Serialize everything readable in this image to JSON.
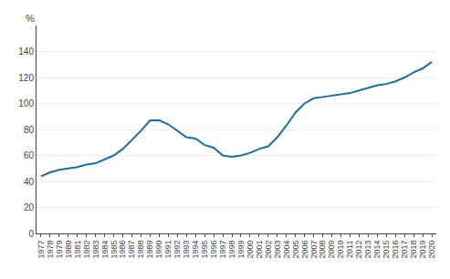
{
  "chart_data": {
    "type": "line",
    "x": [
      1977,
      1978,
      1979,
      1980,
      1981,
      1982,
      1983,
      1984,
      1985,
      1986,
      1987,
      1988,
      1989,
      1990,
      1991,
      1992,
      1993,
      1994,
      1995,
      1996,
      1997,
      1998,
      1999,
      2000,
      2001,
      2002,
      2003,
      2004,
      2005,
      2006,
      2007,
      2008,
      2009,
      2010,
      2011,
      2012,
      2013,
      2014,
      2015,
      2016,
      2017,
      2018,
      2019,
      2020
    ],
    "values": [
      44,
      47,
      49,
      50,
      51,
      53,
      54,
      57,
      60,
      65,
      72,
      79,
      87,
      87,
      84,
      79,
      74,
      73,
      68,
      66,
      60,
      59,
      60,
      62,
      65,
      67,
      74,
      83,
      93,
      100,
      104,
      105,
      106,
      107,
      108,
      110,
      112,
      114,
      115,
      117,
      120,
      124,
      127,
      132
    ],
    "color": "#1a6fa0",
    "xlim": [
      1976.5,
      2020.5
    ],
    "xticks": [
      1977,
      1978,
      1979,
      1980,
      1981,
      1982,
      1983,
      1984,
      1985,
      1986,
      1987,
      1988,
      1989,
      1990,
      1991,
      1992,
      1993,
      1994,
      1995,
      1996,
      1997,
      1998,
      1999,
      2000,
      2001,
      2002,
      2003,
      2004,
      2005,
      2006,
      2007,
      2008,
      2009,
      2010,
      2011,
      2012,
      2013,
      2014,
      2015,
      2016,
      2017,
      2018,
      2019,
      2020
    ],
    "ylim": [
      0,
      160
    ],
    "yticks": [
      0,
      20,
      40,
      60,
      80,
      100,
      120,
      140
    ],
    "ylabel": "%",
    "grid": true
  }
}
